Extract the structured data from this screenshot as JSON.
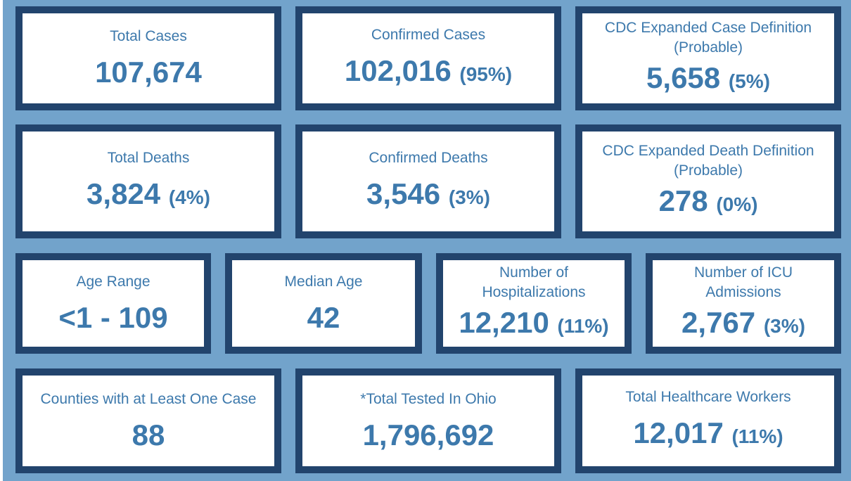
{
  "colors": {
    "background": "#72a3cb",
    "border": "#22446d",
    "text": "#3d79ac"
  },
  "cards": [
    {
      "label": "Total Cases",
      "value": "107,674",
      "pct": ""
    },
    {
      "label": "Confirmed Cases",
      "value": "102,016",
      "pct": "(95%)"
    },
    {
      "label": "CDC Expanded Case Definition\n(Probable)",
      "value": "5,658",
      "pct": "(5%)"
    },
    {
      "label": "Total Deaths",
      "value": "3,824",
      "pct": "(4%)"
    },
    {
      "label": "Confirmed Deaths",
      "value": "3,546",
      "pct": "(3%)"
    },
    {
      "label": "CDC Expanded Death Definition\n(Probable)",
      "value": "278",
      "pct": "(0%)"
    },
    {
      "label": "Age Range",
      "value": "<1 - 109",
      "pct": ""
    },
    {
      "label": "Median Age",
      "value": "42",
      "pct": ""
    },
    {
      "label": "Number of\nHospitalizations",
      "value": "12,210",
      "pct": "(11%)"
    },
    {
      "label": "Number of ICU\nAdmissions",
      "value": "2,767",
      "pct": "(3%)"
    },
    {
      "label": "Counties with at Least One Case",
      "value": "88",
      "pct": ""
    },
    {
      "label": "*Total Tested In Ohio",
      "value": "1,796,692",
      "pct": ""
    },
    {
      "label": "Total Healthcare Workers",
      "value": "12,017",
      "pct": "(11%)"
    }
  ]
}
